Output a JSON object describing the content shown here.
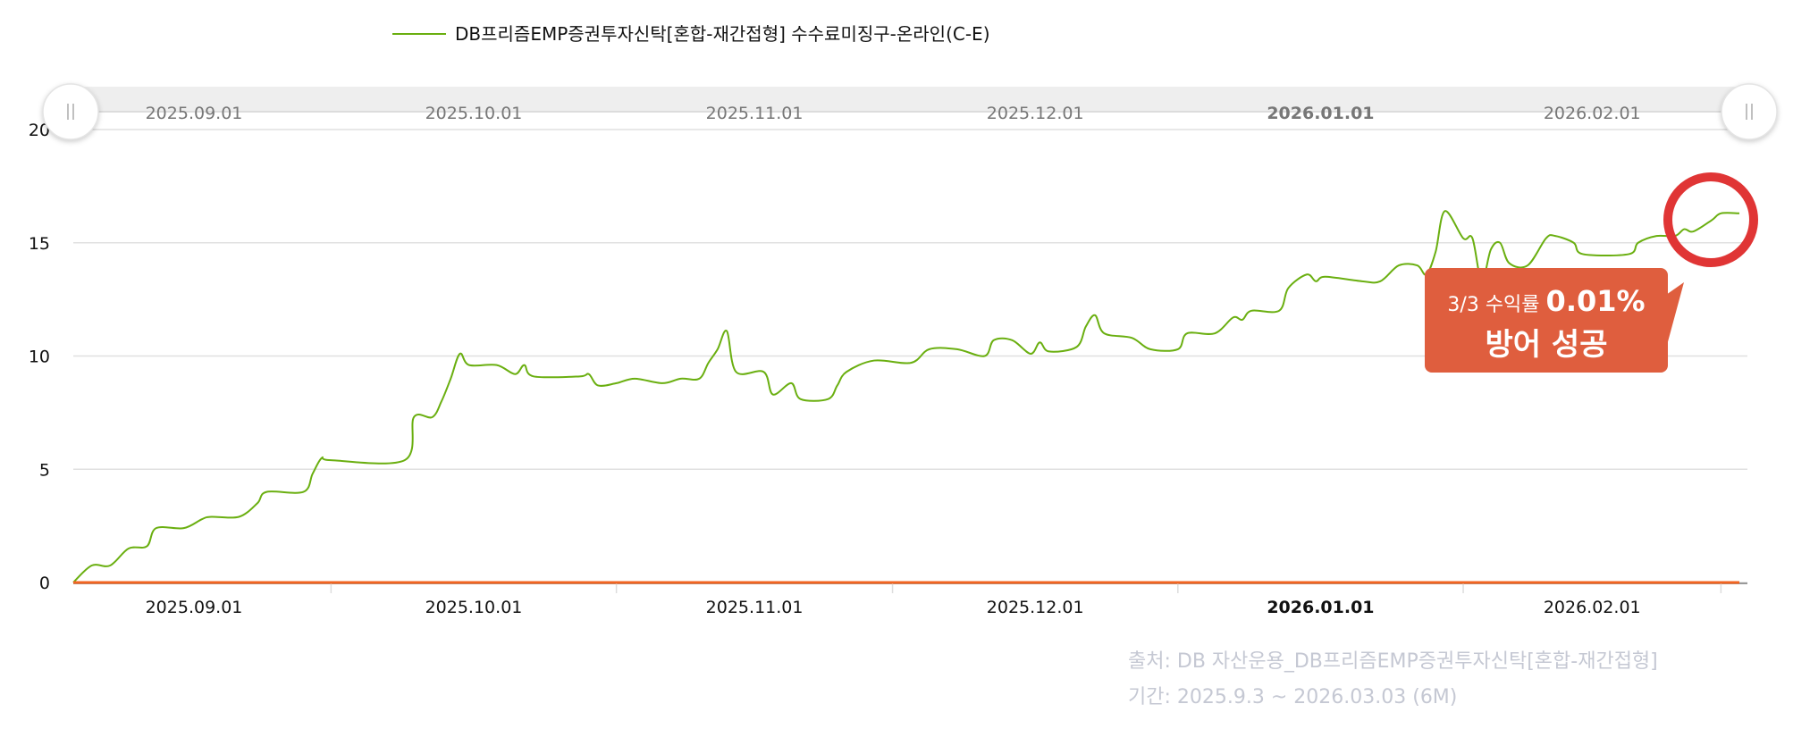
{
  "chart_data": {
    "type": "line",
    "legend": {
      "placement": "top-center",
      "label": "DB프리즘EMP증권투자신탁[혼합-재간접형] 수수료미징구-온라인(C-E)"
    },
    "ylim": [
      0,
      20
    ],
    "yticks": [
      "0",
      "5",
      "10",
      "15",
      "20"
    ],
    "grid": true,
    "xrange": [
      "2025-09-03",
      "2026-03-03"
    ],
    "xticks": [
      {
        "label": "2025.09.01",
        "bold": false
      },
      {
        "label": "2025.10.01",
        "bold": false
      },
      {
        "label": "2025.11.01",
        "bold": false
      },
      {
        "label": "2025.12.01",
        "bold": false
      },
      {
        "label": "2026.01.01",
        "bold": true
      },
      {
        "label": "2026.02.01",
        "bold": false
      }
    ],
    "series": [
      {
        "name": "DB프리즘EMP증권투자신탁[혼합-재간접형] 수수료미징구-온라인(C-E)",
        "color": "#6aaf10",
        "points": [
          [
            "2025-09-03",
            0
          ],
          [
            "2025-09-05",
            0.75
          ],
          [
            "2025-09-07",
            0.75
          ],
          [
            "2025-09-09",
            1.5
          ],
          [
            "2025-09-11",
            1.6
          ],
          [
            "2025-09-12",
            2.4
          ],
          [
            "2025-09-15",
            2.4
          ],
          [
            "2025-09-17",
            2.8
          ],
          [
            "2025-09-18",
            2.9
          ],
          [
            "2025-09-21",
            2.9
          ],
          [
            "2025-09-23",
            3.5
          ],
          [
            "2025-09-24",
            4.0
          ],
          [
            "2025-09-28",
            4.0
          ],
          [
            "2025-09-29",
            4.8
          ],
          [
            "2025-09-30",
            5.5
          ],
          [
            "2025-10-01",
            5.4
          ],
          [
            "2025-10-09",
            5.4
          ],
          [
            "2025-10-10",
            7.3
          ],
          [
            "2025-10-12",
            7.3
          ],
          [
            "2025-10-13",
            8.0
          ],
          [
            "2025-10-14",
            9.0
          ],
          [
            "2025-10-15",
            10.1
          ],
          [
            "2025-10-16",
            9.6
          ],
          [
            "2025-10-19",
            9.6
          ],
          [
            "2025-10-21",
            9.2
          ],
          [
            "2025-10-22",
            9.6
          ],
          [
            "2025-10-23",
            9.1
          ],
          [
            "2025-10-28",
            9.1
          ],
          [
            "2025-10-29",
            9.2
          ],
          [
            "2025-10-30",
            8.7
          ],
          [
            "2025-11-01",
            8.8
          ],
          [
            "2025-11-03",
            9.0
          ],
          [
            "2025-11-06",
            8.8
          ],
          [
            "2025-11-08",
            9.0
          ],
          [
            "2025-11-10",
            9.0
          ],
          [
            "2025-11-11",
            9.7
          ],
          [
            "2025-11-12",
            10.3
          ],
          [
            "2025-11-13",
            11.1
          ],
          [
            "2025-11-14",
            9.3
          ],
          [
            "2025-11-17",
            9.3
          ],
          [
            "2025-11-18",
            8.3
          ],
          [
            "2025-11-20",
            8.8
          ],
          [
            "2025-11-21",
            8.1
          ],
          [
            "2025-11-24",
            8.1
          ],
          [
            "2025-11-25",
            8.7
          ],
          [
            "2025-11-26",
            9.3
          ],
          [
            "2025-11-29",
            9.8
          ],
          [
            "2025-12-03",
            9.7
          ],
          [
            "2025-12-05",
            10.3
          ],
          [
            "2025-12-08",
            10.3
          ],
          [
            "2025-12-11",
            10.0
          ],
          [
            "2025-12-12",
            10.7
          ],
          [
            "2025-12-14",
            10.7
          ],
          [
            "2025-12-16",
            10.1
          ],
          [
            "2025-12-17",
            10.6
          ],
          [
            "2025-12-18",
            10.2
          ],
          [
            "2025-12-21",
            10.4
          ],
          [
            "2025-12-22",
            11.3
          ],
          [
            "2025-12-23",
            11.8
          ],
          [
            "2025-12-24",
            11.0
          ],
          [
            "2025-12-27",
            10.8
          ],
          [
            "2025-12-29",
            10.3
          ],
          [
            "2026-01-01",
            10.3
          ],
          [
            "2026-01-02",
            11.0
          ],
          [
            "2026-01-05",
            11.0
          ],
          [
            "2026-01-07",
            11.7
          ],
          [
            "2026-01-08",
            11.6
          ],
          [
            "2026-01-09",
            12.0
          ],
          [
            "2026-01-12",
            12.0
          ],
          [
            "2026-01-13",
            13.0
          ],
          [
            "2026-01-15",
            13.6
          ],
          [
            "2026-01-16",
            13.3
          ],
          [
            "2026-01-17",
            13.5
          ],
          [
            "2026-01-21",
            13.3
          ],
          [
            "2026-01-23",
            13.3
          ],
          [
            "2026-01-25",
            14.0
          ],
          [
            "2026-01-27",
            14.0
          ],
          [
            "2026-01-28",
            13.6
          ],
          [
            "2026-01-29",
            14.6
          ],
          [
            "2026-01-30",
            16.4
          ],
          [
            "2026-02-01",
            15.2
          ],
          [
            "2026-02-02",
            15.2
          ],
          [
            "2026-02-03",
            13.3
          ],
          [
            "2026-02-04",
            14.7
          ],
          [
            "2026-02-05",
            15.0
          ],
          [
            "2026-02-06",
            14.1
          ],
          [
            "2026-02-08",
            14.0
          ],
          [
            "2026-02-10",
            15.2
          ],
          [
            "2026-02-11",
            15.3
          ],
          [
            "2026-02-13",
            15.0
          ],
          [
            "2026-02-14",
            14.5
          ],
          [
            "2026-02-19",
            14.5
          ],
          [
            "2026-02-20",
            15.0
          ],
          [
            "2026-02-22",
            15.3
          ],
          [
            "2026-02-24",
            15.3
          ],
          [
            "2026-02-25",
            15.6
          ],
          [
            "2026-02-26",
            15.5
          ],
          [
            "2026-02-28",
            16.0
          ],
          [
            "2026-03-01",
            16.3
          ],
          [
            "2026-03-03",
            16.3
          ]
        ]
      },
      {
        "color": "#f26522",
        "points": [
          [
            "2025-09-03",
            0
          ],
          [
            "2026-03-03",
            0
          ]
        ]
      }
    ],
    "annotation": {
      "line1_prefix": "3/3 수익률",
      "line1_value": "0.01%",
      "line2": "방어 성공",
      "box_color": "#df5e3e",
      "circle_color": "#e03535"
    }
  },
  "footer": {
    "source": "출처: DB 자산운용_DB프리즘EMP증권투자신탁[혼합-재간접형]",
    "period": "기간: 2025.9.3 ~ 2026.03.03 (6M)"
  }
}
